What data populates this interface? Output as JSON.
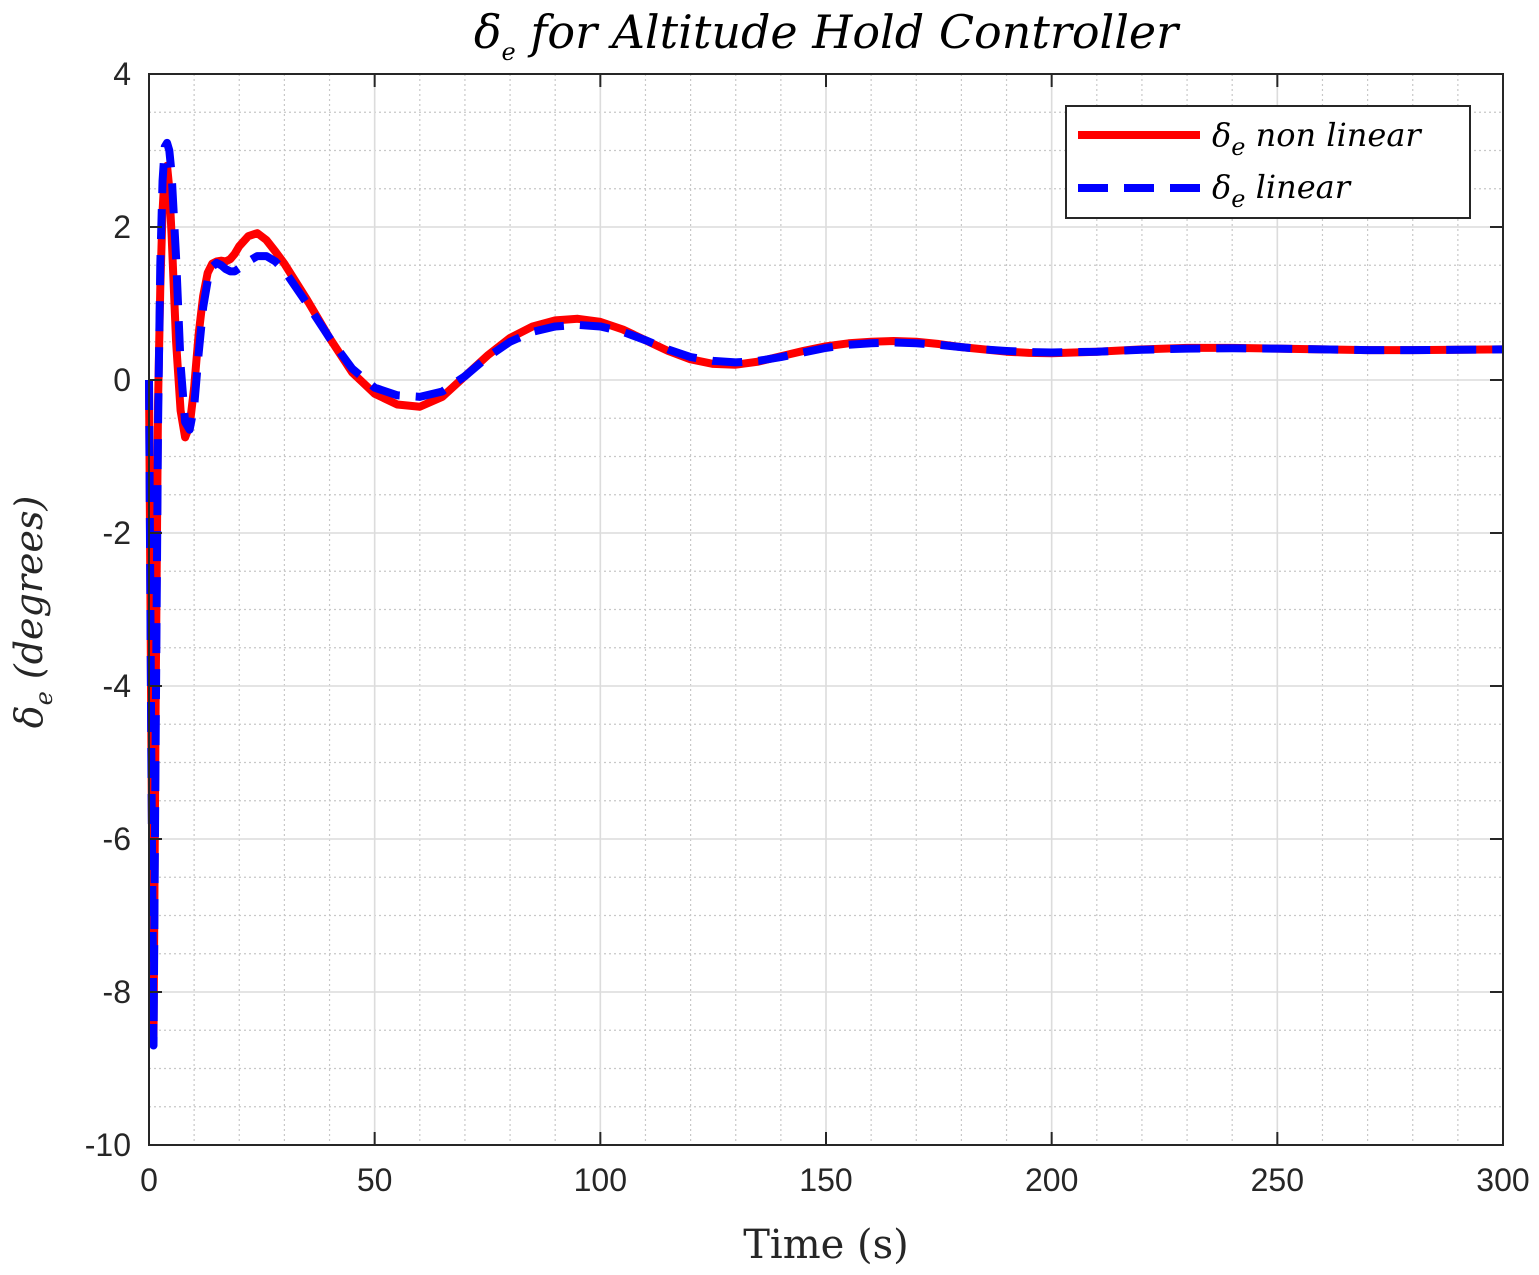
{
  "chart_data": {
    "type": "line",
    "title": "δe for Altitude Hold Controller",
    "title_main": "δ",
    "title_sub": "e",
    "title_rest": " for Altitude Hold Controller",
    "xlabel": "Time (s)",
    "ylabel_main": "δ",
    "ylabel_sub": "e",
    "ylabel_rest": " (degrees)",
    "xlim": [
      0,
      300
    ],
    "ylim": [
      -10,
      4
    ],
    "xticks": [
      0,
      50,
      100,
      150,
      200,
      250,
      300
    ],
    "yticks": [
      -10,
      -8,
      -6,
      -4,
      -2,
      0,
      2,
      4
    ],
    "xtick_labels": [
      "0",
      "50",
      "100",
      "150",
      "200",
      "250",
      "300"
    ],
    "ytick_labels": [
      "-10",
      "-8",
      "-6",
      "-4",
      "-2",
      "0",
      "2",
      "4"
    ],
    "grid": true,
    "minor_grid": true,
    "legend_position": "top-right",
    "series": [
      {
        "name": "δe non linear",
        "legend_main": "δ",
        "legend_sub": "e",
        "legend_rest": " non linear",
        "color": "#ff0000",
        "style": "solid",
        "x": [
          0,
          0.5,
          1,
          1.5,
          2,
          2.5,
          3,
          3.5,
          4,
          4.5,
          5,
          6,
          7,
          8,
          9,
          10,
          11,
          12,
          13,
          14,
          15,
          16,
          17,
          18,
          19,
          20,
          22,
          24,
          26,
          28,
          30,
          35,
          40,
          45,
          50,
          55,
          60,
          65,
          70,
          75,
          80,
          85,
          90,
          95,
          100,
          105,
          110,
          115,
          120,
          125,
          130,
          135,
          140,
          145,
          150,
          155,
          160,
          165,
          170,
          175,
          180,
          185,
          190,
          195,
          200,
          210,
          220,
          230,
          240,
          250,
          260,
          270,
          280,
          290,
          300
        ],
        "y": [
          0,
          -4.5,
          -8.6,
          -4.0,
          -0.3,
          1.2,
          2.2,
          2.75,
          2.8,
          2.5,
          1.9,
          0.5,
          -0.4,
          -0.75,
          -0.6,
          -0.1,
          0.6,
          1.1,
          1.4,
          1.52,
          1.55,
          1.56,
          1.55,
          1.58,
          1.65,
          1.75,
          1.88,
          1.92,
          1.83,
          1.68,
          1.52,
          1.05,
          0.55,
          0.1,
          -0.18,
          -0.32,
          -0.35,
          -0.22,
          0.05,
          0.32,
          0.55,
          0.7,
          0.78,
          0.8,
          0.76,
          0.66,
          0.52,
          0.38,
          0.27,
          0.21,
          0.2,
          0.24,
          0.31,
          0.38,
          0.44,
          0.48,
          0.5,
          0.51,
          0.5,
          0.47,
          0.43,
          0.4,
          0.37,
          0.355,
          0.35,
          0.37,
          0.4,
          0.42,
          0.42,
          0.41,
          0.4,
          0.39,
          0.39,
          0.395,
          0.4
        ]
      },
      {
        "name": "δe linear",
        "legend_main": "δ",
        "legend_sub": "e",
        "legend_rest": " linear",
        "color": "#0000ff",
        "style": "dashed",
        "x": [
          0,
          0.5,
          1,
          1.5,
          2,
          2.5,
          3,
          3.5,
          4,
          4.5,
          5,
          6,
          7,
          8,
          9,
          10,
          11,
          12,
          13,
          14,
          15,
          16,
          17,
          18,
          19,
          20,
          22,
          24,
          26,
          28,
          30,
          35,
          40,
          45,
          50,
          55,
          60,
          65,
          70,
          75,
          80,
          85,
          90,
          95,
          100,
          105,
          110,
          115,
          120,
          125,
          130,
          135,
          140,
          145,
          150,
          155,
          160,
          165,
          170,
          175,
          180,
          185,
          190,
          195,
          200,
          210,
          220,
          230,
          240,
          250,
          260,
          270,
          280,
          290,
          300
        ],
        "y": [
          0,
          -4.8,
          -8.7,
          -4.5,
          -0.6,
          1.5,
          2.6,
          3.05,
          3.1,
          3.0,
          2.7,
          1.6,
          0.2,
          -0.55,
          -0.65,
          -0.35,
          0.35,
          0.95,
          1.3,
          1.48,
          1.53,
          1.5,
          1.45,
          1.42,
          1.42,
          1.46,
          1.55,
          1.62,
          1.62,
          1.55,
          1.43,
          1.0,
          0.55,
          0.15,
          -0.1,
          -0.2,
          -0.22,
          -0.15,
          0.05,
          0.3,
          0.5,
          0.63,
          0.7,
          0.72,
          0.7,
          0.63,
          0.52,
          0.4,
          0.3,
          0.25,
          0.23,
          0.25,
          0.3,
          0.36,
          0.42,
          0.46,
          0.48,
          0.49,
          0.48,
          0.46,
          0.43,
          0.4,
          0.38,
          0.365,
          0.36,
          0.37,
          0.395,
          0.41,
          0.415,
          0.41,
          0.4,
          0.39,
          0.39,
          0.395,
          0.4
        ]
      }
    ]
  }
}
